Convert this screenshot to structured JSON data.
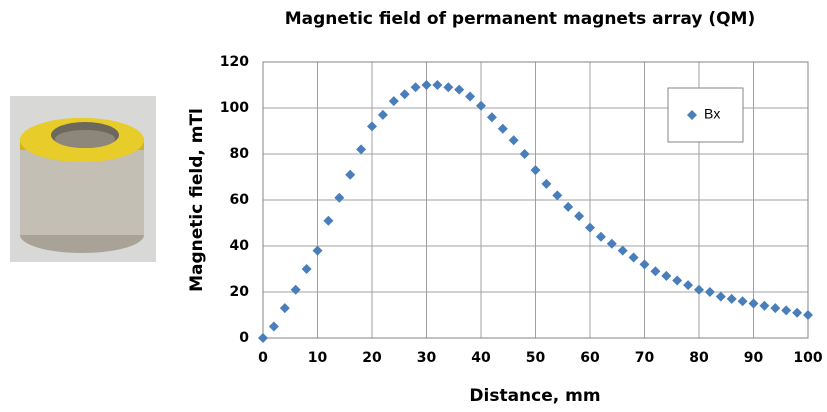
{
  "chart_data": {
    "type": "scatter",
    "title": "Magnetic field of permanent magnets array (QM)",
    "x_label": "Distance, mm",
    "y_label": "Magnetic field, mTl",
    "x": [
      0,
      2,
      4,
      6,
      8,
      10,
      12,
      14,
      16,
      18,
      20,
      22,
      24,
      26,
      28,
      30,
      32,
      34,
      36,
      38,
      40,
      42,
      44,
      46,
      48,
      50,
      52,
      54,
      56,
      58,
      60,
      62,
      64,
      66,
      68,
      70,
      72,
      74,
      76,
      78,
      80,
      82,
      84,
      86,
      88,
      90,
      92,
      94,
      96,
      98,
      100
    ],
    "series": [
      {
        "name": "Bx",
        "color": "#4a7ebb",
        "values": [
          0,
          5,
          13,
          21,
          30,
          38,
          51,
          61,
          71,
          82,
          92,
          97,
          103,
          106,
          109,
          110,
          110,
          109,
          108,
          105,
          101,
          96,
          91,
          86,
          80,
          73,
          67,
          62,
          57,
          53,
          48,
          44,
          41,
          38,
          35,
          32,
          29,
          27,
          25,
          23,
          21,
          20,
          18,
          17,
          16,
          15,
          14,
          13,
          12,
          11,
          10
        ]
      }
    ],
    "xlim": [
      0,
      100
    ],
    "xticks": [
      0,
      10,
      20,
      30,
      40,
      50,
      60,
      70,
      80,
      90,
      100
    ],
    "ylim": [
      0,
      120
    ],
    "yticks": [
      0,
      20,
      40,
      60,
      80,
      100,
      120
    ],
    "grid": true,
    "legend": "upper right"
  }
}
